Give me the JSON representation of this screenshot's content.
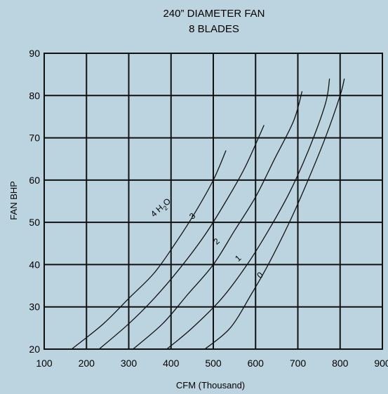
{
  "chart_data": {
    "type": "line",
    "title": [
      "240” DIAMETER FAN",
      "8 BLADES"
    ],
    "xlabel": "CFM (Thousand)",
    "ylabel": "FAN BHP",
    "xlim": [
      100,
      900
    ],
    "ylim": [
      20,
      90
    ],
    "xticks": [
      100,
      200,
      300,
      400,
      500,
      600,
      700,
      800,
      900
    ],
    "yticks": [
      20,
      30,
      40,
      50,
      60,
      70,
      80,
      90
    ],
    "grid": true,
    "series": [
      {
        "name": "4 H₂O",
        "label_parts": [
          "4",
          "H",
          "2",
          "O"
        ],
        "label_at": [
          380,
          53
        ],
        "points": [
          [
            165,
            20
          ],
          [
            240,
            26
          ],
          [
            300,
            32
          ],
          [
            360,
            38
          ],
          [
            410,
            45
          ],
          [
            455,
            52
          ],
          [
            500,
            60
          ],
          [
            530,
            67
          ]
        ]
      },
      {
        "name": "3",
        "label_parts": [
          "3"
        ],
        "label_at": [
          455,
          51
        ],
        "points": [
          [
            230,
            20
          ],
          [
            300,
            26
          ],
          [
            360,
            32
          ],
          [
            420,
            39
          ],
          [
            480,
            47
          ],
          [
            530,
            55
          ],
          [
            575,
            63
          ],
          [
            620,
            73
          ]
        ]
      },
      {
        "name": "2",
        "label_parts": [
          "2"
        ],
        "label_at": [
          512,
          45
        ],
        "points": [
          [
            310,
            20
          ],
          [
            380,
            26
          ],
          [
            440,
            33
          ],
          [
            500,
            40
          ],
          [
            550,
            48
          ],
          [
            600,
            56
          ],
          [
            645,
            65
          ],
          [
            690,
            74
          ],
          [
            710,
            81
          ]
        ]
      },
      {
        "name": "1",
        "label_parts": [
          "1"
        ],
        "label_at": [
          563,
          41
        ],
        "points": [
          [
            390,
            20
          ],
          [
            450,
            25
          ],
          [
            520,
            32
          ],
          [
            580,
            40
          ],
          [
            630,
            48
          ],
          [
            680,
            57
          ],
          [
            725,
            67
          ],
          [
            765,
            78
          ],
          [
            775,
            84
          ]
        ]
      },
      {
        "name": "0",
        "label_parts": [
          "0"
        ],
        "label_at": [
          615,
          37
        ],
        "points": [
          [
            480,
            20
          ],
          [
            540,
            25
          ],
          [
            590,
            33
          ],
          [
            630,
            40
          ],
          [
            680,
            50
          ],
          [
            720,
            59
          ],
          [
            765,
            70
          ],
          [
            800,
            80
          ],
          [
            810,
            84
          ]
        ]
      }
    ]
  }
}
